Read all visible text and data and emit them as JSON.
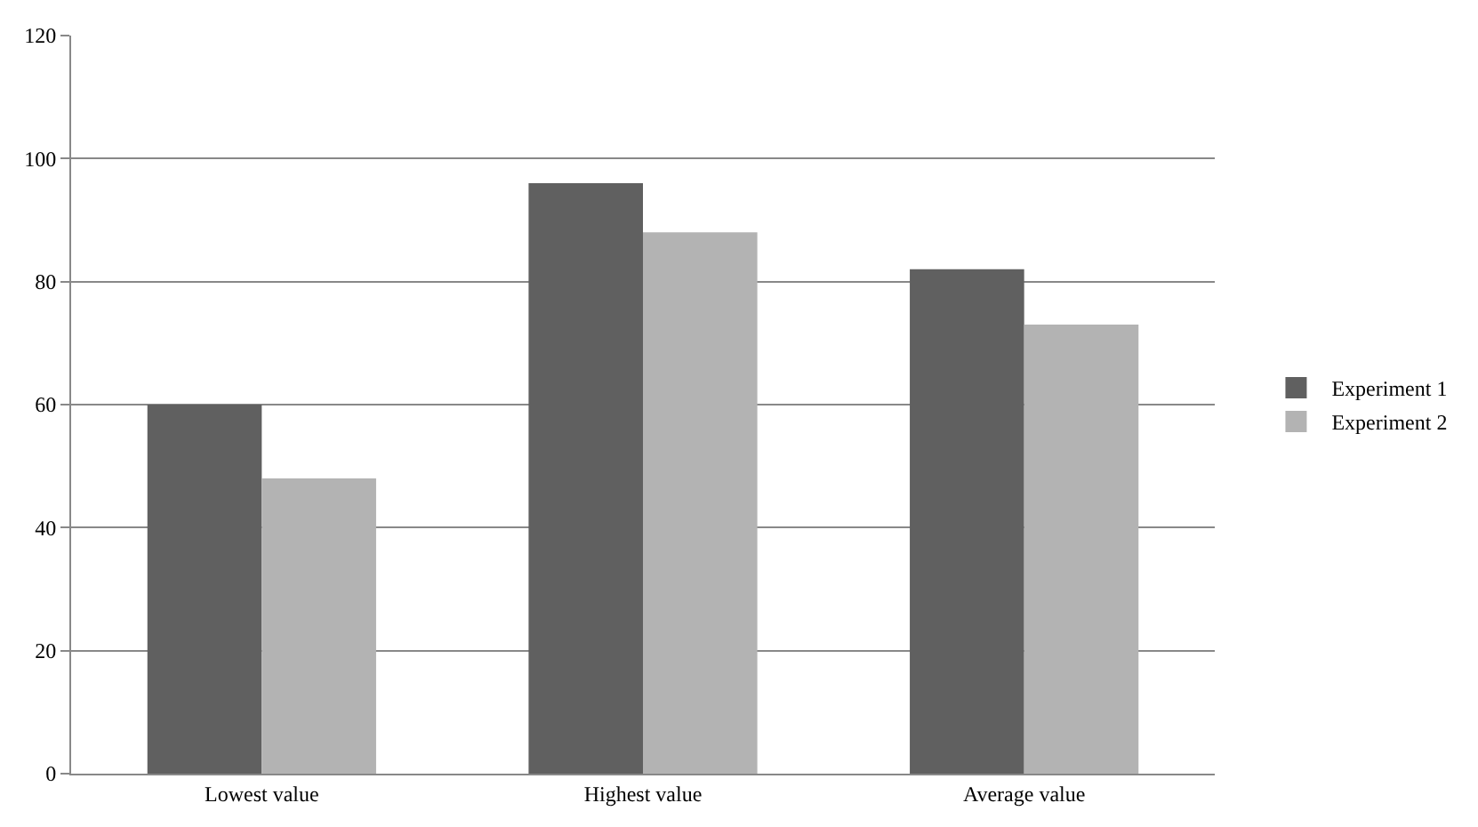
{
  "chart_data": {
    "type": "bar",
    "categories": [
      "Lowest value",
      "Highest value",
      "Average value"
    ],
    "series": [
      {
        "name": "Experiment 1",
        "color": "#606060",
        "values": [
          60,
          96,
          82
        ]
      },
      {
        "name": "Experiment 2",
        "color": "#b3b3b3",
        "values": [
          48,
          88,
          73
        ]
      }
    ],
    "ylim": [
      0,
      120
    ],
    "yticks": [
      0,
      20,
      40,
      60,
      80,
      100,
      120
    ],
    "grid": "y",
    "legend": "right"
  }
}
